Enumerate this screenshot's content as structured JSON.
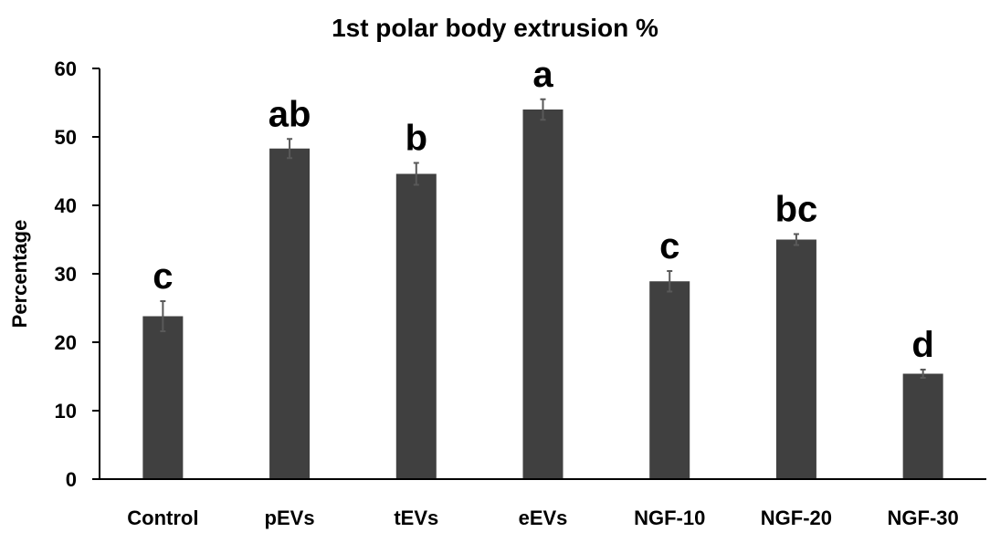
{
  "chart_data": {
    "type": "bar",
    "title": "1st polar body extrusion %",
    "xlabel": "",
    "ylabel": "Percentage",
    "ylim": [
      0,
      60
    ],
    "yticks": [
      0,
      10,
      20,
      30,
      40,
      50,
      60
    ],
    "grid": false,
    "legend": "none",
    "categories": [
      "Control",
      "pEVs",
      "tEVs",
      "eEVs",
      "NGF-10",
      "NGF-20",
      "NGF-30"
    ],
    "values": [
      23.8,
      48.3,
      44.6,
      54.0,
      28.9,
      35.0,
      15.4
    ],
    "errors": [
      2.2,
      1.4,
      1.6,
      1.5,
      1.5,
      0.8,
      0.6
    ],
    "significance_labels": [
      "c",
      "ab",
      "b",
      "a",
      "c",
      "bc",
      "d"
    ],
    "colors": {
      "bar": "#404040",
      "error_bar": "#595959",
      "axis": "#000000"
    }
  }
}
